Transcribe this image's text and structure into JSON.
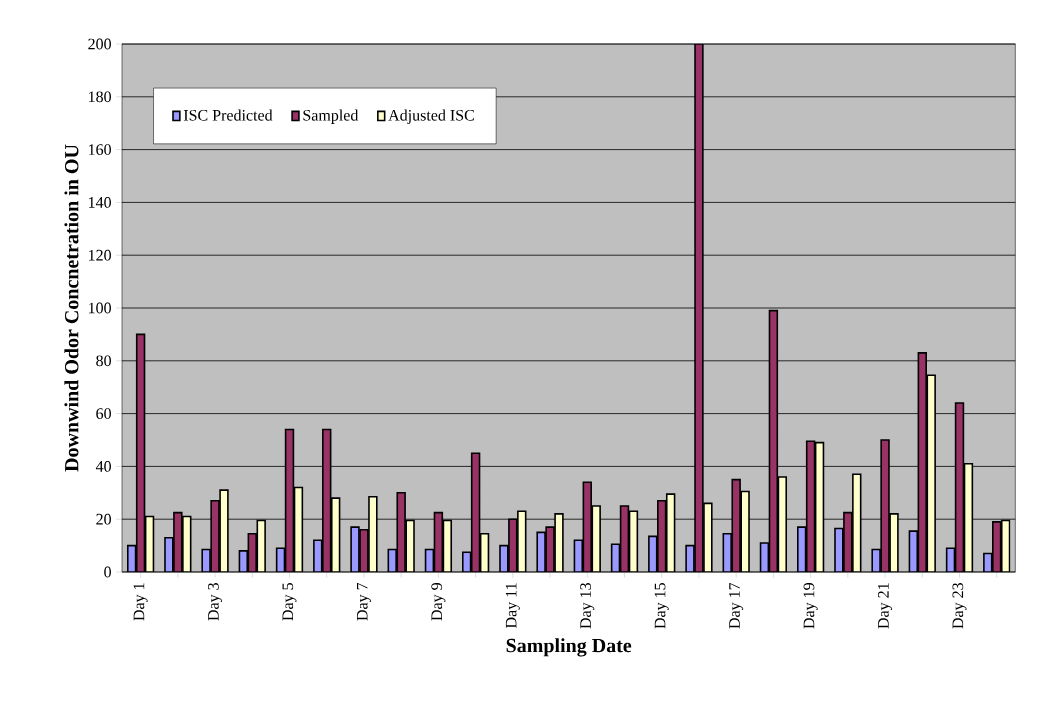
{
  "chart_data": {
    "type": "bar",
    "xlabel": "Sampling Date",
    "ylabel": "Downwind Odor Concnetration in OU",
    "categories": [
      "Day 1",
      null,
      "Day 3",
      null,
      "Day 5",
      null,
      "Day 7",
      null,
      "Day 9",
      null,
      "Day 11",
      null,
      "Day 13",
      null,
      "Day 15",
      null,
      "Day 17",
      null,
      "Day 19",
      null,
      "Day 21",
      null,
      "Day 23",
      null
    ],
    "series": [
      {
        "name": "ISC Predicted",
        "color": "#9999ff",
        "values": [
          10,
          13,
          8.5,
          8,
          9,
          12,
          17,
          8.5,
          8.5,
          7.5,
          10,
          15,
          12,
          10.5,
          13.5,
          10,
          14.5,
          11,
          17,
          16.5,
          8.5,
          15.5,
          9,
          7
        ]
      },
      {
        "name": "Sampled",
        "color": "#993366",
        "values": [
          90,
          22.5,
          27,
          14.5,
          54,
          54,
          16,
          30,
          22.5,
          45,
          20,
          17,
          34,
          25,
          27,
          200,
          35,
          99,
          49.5,
          22.5,
          50,
          83,
          64,
          19
        ]
      },
      {
        "name": "Adjusted ISC",
        "color": "#ffffcc",
        "values": [
          21,
          21,
          31,
          19.5,
          32,
          28,
          28.5,
          19.5,
          19.5,
          14.5,
          23,
          22,
          25,
          23,
          29.5,
          26,
          30.5,
          36,
          49,
          37,
          22,
          74.5,
          41,
          19.5
        ]
      }
    ],
    "ylim": [
      0,
      200
    ],
    "yticks": [
      0,
      20,
      40,
      60,
      80,
      100,
      120,
      140,
      160,
      180,
      200
    ],
    "grid": "y",
    "legend": "top left"
  }
}
